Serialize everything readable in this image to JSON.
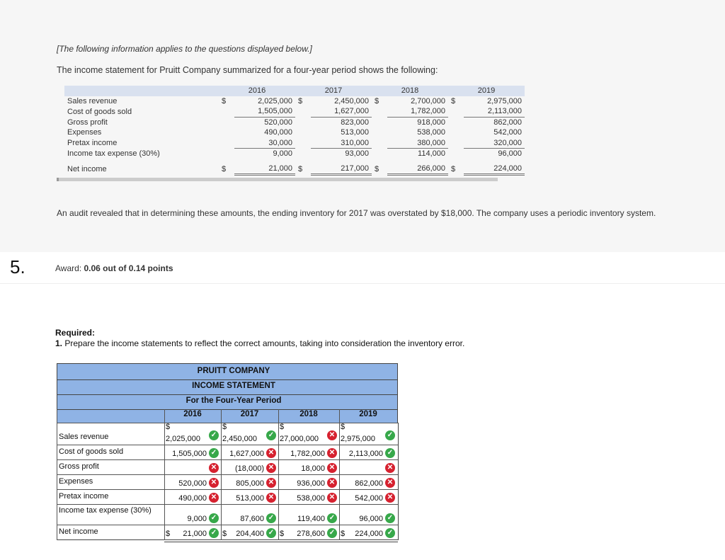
{
  "intro": "[The following information applies to the questions displayed below.]",
  "lead": "The income statement for Pruitt Company summarized for a four-year period shows the following:",
  "given": {
    "years": [
      "2016",
      "2017",
      "2018",
      "2019"
    ],
    "rows": [
      {
        "label": "Sales revenue",
        "dollar": true,
        "values": [
          "2,025,000",
          "2,450,000",
          "2,700,000",
          "2,975,000"
        ]
      },
      {
        "label": "Cost of goods sold",
        "dollar": false,
        "values": [
          "1,505,000",
          "1,627,000",
          "1,782,000",
          "2,113,000"
        ]
      },
      {
        "label": "Gross profit",
        "dollar": false,
        "values": [
          "520,000",
          "823,000",
          "918,000",
          "862,000"
        ]
      },
      {
        "label": "Expenses",
        "dollar": false,
        "values": [
          "490,000",
          "513,000",
          "538,000",
          "542,000"
        ]
      },
      {
        "label": "Pretax income",
        "dollar": false,
        "values": [
          "30,000",
          "310,000",
          "380,000",
          "320,000"
        ]
      },
      {
        "label": "Income tax expense (30%)",
        "dollar": false,
        "values": [
          "9,000",
          "93,000",
          "114,000",
          "96,000"
        ]
      },
      {
        "label": "Net income",
        "dollar": true,
        "values": [
          "21,000",
          "217,000",
          "266,000",
          "224,000"
        ]
      }
    ],
    "currency": "$"
  },
  "audit": "An audit revealed that in determining these amounts, the ending inventory for 2017 was overstated by $18,000. The company uses a periodic inventory system.",
  "question": {
    "number": "5.",
    "award_prefix": "Award: ",
    "award_value": "0.06 out of 0.14 points"
  },
  "required": {
    "title": "Required:",
    "text_num": "1.",
    "text": " Prepare the income statements to reflect the correct amounts, taking into consideration the inventory error."
  },
  "answer": {
    "company": "PRUITT COMPANY",
    "statement": "INCOME STATEMENT",
    "period": "For the Four-Year Period",
    "years": [
      "2016",
      "2017",
      "2018",
      "2019"
    ],
    "rows": [
      {
        "label": "Sales revenue",
        "cells": [
          {
            "value": "2,025,000",
            "top_dollar": true,
            "status": "correct"
          },
          {
            "value": "2,450,000",
            "top_dollar": true,
            "status": "correct"
          },
          {
            "value": "27,000,000",
            "top_dollar": true,
            "status": "incorrect"
          },
          {
            "value": "2,975,000",
            "top_dollar": true,
            "status": "correct"
          }
        ]
      },
      {
        "label": "Cost of goods sold",
        "cells": [
          {
            "value": "1,505,000",
            "status": "correct"
          },
          {
            "value": "1,627,000",
            "status": "incorrect"
          },
          {
            "value": "1,782,000",
            "status": "incorrect"
          },
          {
            "value": "2,113,000",
            "status": "correct"
          }
        ]
      },
      {
        "label": "Gross profit",
        "cells": [
          {
            "value": "",
            "status": "incorrect"
          },
          {
            "value": "(18,000)",
            "status": "incorrect"
          },
          {
            "value": "18,000",
            "status": "incorrect"
          },
          {
            "value": "",
            "status": "incorrect"
          }
        ]
      },
      {
        "label": "Expenses",
        "cells": [
          {
            "value": "520,000",
            "status": "incorrect"
          },
          {
            "value": "805,000",
            "status": "incorrect"
          },
          {
            "value": "936,000",
            "status": "incorrect"
          },
          {
            "value": "862,000",
            "status": "incorrect"
          }
        ]
      },
      {
        "label": "Pretax income",
        "cells": [
          {
            "value": "490,000",
            "status": "incorrect"
          },
          {
            "value": "513,000",
            "status": "incorrect"
          },
          {
            "value": "538,000",
            "status": "incorrect"
          },
          {
            "value": "542,000",
            "status": "incorrect"
          }
        ]
      },
      {
        "label": "Income tax expense (30%)",
        "cells": [
          {
            "value": "9,000",
            "status": "correct"
          },
          {
            "value": "87,600",
            "status": "correct"
          },
          {
            "value": "119,400",
            "status": "correct"
          },
          {
            "value": "96,000",
            "status": "correct"
          }
        ]
      },
      {
        "label": "Net income",
        "cells": [
          {
            "value": "21,000",
            "inline_dollar": true,
            "status": "correct"
          },
          {
            "value": "204,400",
            "inline_dollar": true,
            "status": "correct"
          },
          {
            "value": "278,600",
            "inline_dollar": true,
            "status": "correct"
          },
          {
            "value": "224,000",
            "inline_dollar": true,
            "status": "correct"
          }
        ]
      }
    ],
    "check_glyph": "✓",
    "cross_glyph": "✕",
    "colors": {
      "header_blue": "#8fb3e5",
      "correct": "#37a84a",
      "incorrect": "#d6212f"
    }
  }
}
